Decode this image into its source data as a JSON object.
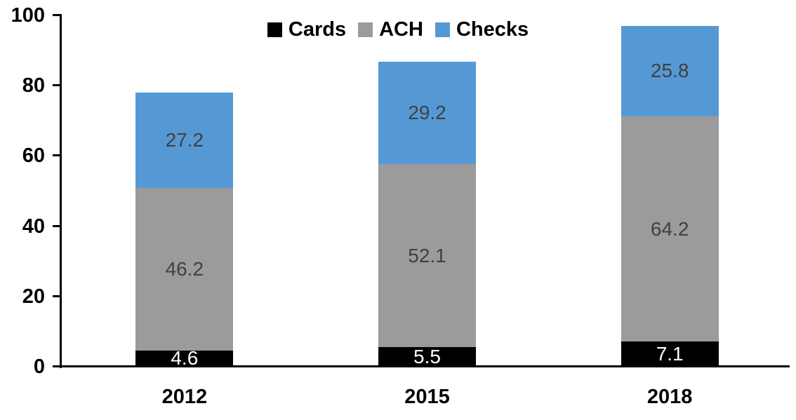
{
  "chart_data": {
    "type": "bar",
    "stacked": true,
    "categories": [
      "2012",
      "2015",
      "2018"
    ],
    "series": [
      {
        "name": "Cards",
        "color": "#000000",
        "label_color": "#ffffff",
        "values": [
          4.6,
          5.5,
          7.1
        ]
      },
      {
        "name": "ACH",
        "color": "#9B9B9B",
        "label_color": "#404040",
        "values": [
          46.2,
          52.1,
          64.2
        ]
      },
      {
        "name": "Checks",
        "color": "#5599D4",
        "label_color": "#404040",
        "values": [
          27.2,
          29.2,
          25.8
        ]
      }
    ],
    "y_axis": {
      "min": 0,
      "max": 100,
      "ticks": [
        "0",
        "20",
        "40",
        "60",
        "80",
        "100"
      ]
    },
    "x_axis": {
      "tick_labels": [
        "2012",
        "2015",
        "2018"
      ]
    },
    "legend": {
      "position": "top",
      "entries": [
        "Cards",
        "ACH",
        "Checks"
      ]
    },
    "grid": false,
    "data_labels_shown": true
  },
  "colors": {
    "axis": "#000000",
    "background": "#ffffff"
  }
}
